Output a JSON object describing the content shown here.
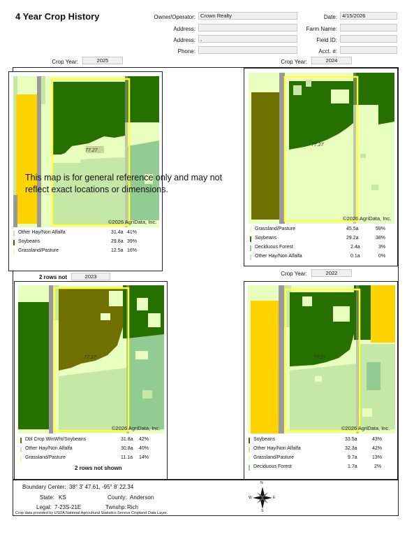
{
  "header": {
    "title": "4 Year Crop History",
    "owner_label": "Owner/Operator:",
    "owner_value": "Crown Realty",
    "address1_label": "Address:",
    "address1_value": "",
    "address2_label": "Address:",
    "address2_value": ",",
    "phone_label": "Phone:",
    "phone_value": "",
    "date_label": "Date:",
    "date_value": "4/15/2026",
    "farm_label": "Farm Name:",
    "farm_value": "",
    "fieldid_label": "Field ID:",
    "fieldid_value": "",
    "acct_label": "Acct. #:",
    "acct_value": ""
  },
  "crop_year_label": "Crop Year:",
  "copyright": "©2026 AgriData, Inc.",
  "field_label": "77.27",
  "disclaimer": "This map is for general reference only and may not reflect exact locations or dimensions.",
  "panels": [
    {
      "year": "2025",
      "rows": [
        {
          "name": "Other Hay/Non Alfalfa",
          "acres": "31.4a",
          "pct": "41%",
          "color": "#c6e8a6"
        },
        {
          "name": "Soybeans",
          "acres": "29.8a",
          "pct": "39%",
          "color": "#267000"
        },
        {
          "name": "Grassland/Pasture",
          "acres": "12.5a",
          "pct": "16%",
          "color": "#e8ffbf"
        }
      ]
    },
    {
      "year": "2024",
      "rows": [
        {
          "name": "Grassland/Pasture",
          "acres": "45.5a",
          "pct": "59%",
          "color": "#e8ffbf"
        },
        {
          "name": "Soybeans",
          "acres": "29.2a",
          "pct": "38%",
          "color": "#267000"
        },
        {
          "name": "Deciduous Forest",
          "acres": "2.4a",
          "pct": "3%",
          "color": "#93cc93"
        },
        {
          "name": "Other Hay/Non Alfalfa",
          "acres": "0.1a",
          "pct": "0%",
          "color": "#c6e8a6"
        }
      ]
    },
    {
      "year": "2023",
      "note": "2 rows not shown",
      "rows": [
        {
          "name": "Dbl Crop WinWht/Soybeans",
          "acres": "31.8a",
          "pct": "42%",
          "color": "#707000"
        },
        {
          "name": "Other Hay/Non Alfalfa",
          "acres": "30.8a",
          "pct": "40%",
          "color": "#c6e8a6"
        },
        {
          "name": "Grassland/Pasture",
          "acres": "11.1a",
          "pct": "14%",
          "color": "#e8ffbf"
        }
      ]
    },
    {
      "year": "2022",
      "rows": [
        {
          "name": "Soybeans",
          "acres": "33.5a",
          "pct": "43%",
          "color": "#267000"
        },
        {
          "name": "Other Hay/Non Alfalfa",
          "acres": "32.3a",
          "pct": "42%",
          "color": "#c6e8a6"
        },
        {
          "name": "Grassland/Pasture",
          "acres": "9.7a",
          "pct": "13%",
          "color": "#e8ffbf"
        },
        {
          "name": "Deciduous Forest",
          "acres": "1.7a",
          "pct": "2%",
          "color": "#93cc93"
        }
      ]
    }
  ],
  "footer": {
    "boundary_label": "Boundary Center:",
    "boundary_value": "38° 3' 47.61,  -95° 8' 22.34",
    "state_label": "State:",
    "state_value": "KS",
    "county_label": "County:",
    "county_value": "Anderson",
    "legal_label": "Legal:",
    "legal_value": "7-23S-21E",
    "twnshp_label": "Twnshp:",
    "twnshp_value": "Rich",
    "source": "Crop data provided by USDA National Agricultural Statistics Service Cropland Data Layer.",
    "compass": {
      "n": "N",
      "s": "S",
      "e": "E",
      "w": "W"
    }
  },
  "colors": {
    "soybeans": "#267000",
    "hay": "#c6e8a6",
    "grass": "#e8ffbf",
    "forest": "#93cc93",
    "dblcrop": "#707000",
    "corn": "#ffd300",
    "road": "#9a9a9a",
    "boundary": "#ffff3a"
  }
}
